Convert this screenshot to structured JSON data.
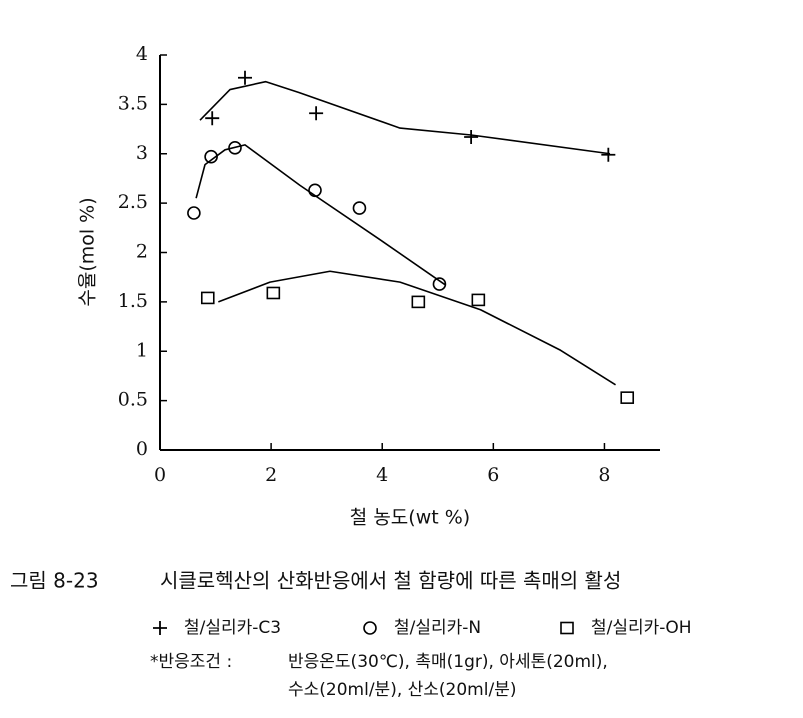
{
  "chart_data": {
    "type": "scatter",
    "xlabel": "철 농도(wt %)",
    "ylabel": "수율(mol %)",
    "xlim": [
      0,
      9
    ],
    "ylim": [
      0,
      4
    ],
    "xticks": [
      0,
      2,
      4,
      6,
      8
    ],
    "yticks": [
      0,
      0.5,
      1,
      1.5,
      2,
      2.5,
      3,
      3.5,
      4
    ],
    "series": [
      {
        "name": "철/실리카-C3",
        "marker": "plus",
        "color": "#000000",
        "x": [
          0.94,
          1.53,
          2.81,
          5.6,
          8.07
        ],
        "values": [
          3.36,
          3.77,
          3.41,
          3.17,
          2.99
        ],
        "fit_x": [
          0.72,
          1.26,
          1.9,
          2.5,
          4.32,
          5.6,
          8.1
        ],
        "fit_y": [
          3.34,
          3.65,
          3.73,
          3.62,
          3.26,
          3.19,
          3.0
        ]
      },
      {
        "name": "철/실리카-N",
        "marker": "circle",
        "color": "#000000",
        "x": [
          0.61,
          0.92,
          1.35,
          2.79,
          3.59,
          5.03
        ],
        "values": [
          2.4,
          2.97,
          3.06,
          2.63,
          2.45,
          1.68
        ],
        "fit_x": [
          0.65,
          0.81,
          1.17,
          1.53,
          2.52,
          3.96,
          5.14
        ],
        "fit_y": [
          2.55,
          2.89,
          3.04,
          3.09,
          2.68,
          2.13,
          1.67
        ]
      },
      {
        "name": "철/실리카-OH",
        "marker": "square",
        "color": "#000000",
        "x": [
          0.86,
          2.04,
          4.65,
          5.73,
          8.41
        ],
        "values": [
          1.54,
          1.59,
          1.5,
          1.52,
          0.53
        ],
        "fit_x": [
          1.05,
          1.98,
          3.06,
          4.32,
          5.77,
          7.21,
          8.2
        ],
        "fit_y": [
          1.5,
          1.7,
          1.81,
          1.7,
          1.42,
          1.01,
          0.66
        ]
      }
    ],
    "caption_number": "그림 8-23",
    "caption": "시클로헥산의 산화반응에서 철 함량에 따른 촉매의 활성",
    "conditions_label": "*반응조건 :",
    "conditions": [
      "반응온도(30℃), 촉매(1gr), 아세톤(20ml),",
      "수소(20ml/분), 산소(20ml/분)"
    ]
  }
}
